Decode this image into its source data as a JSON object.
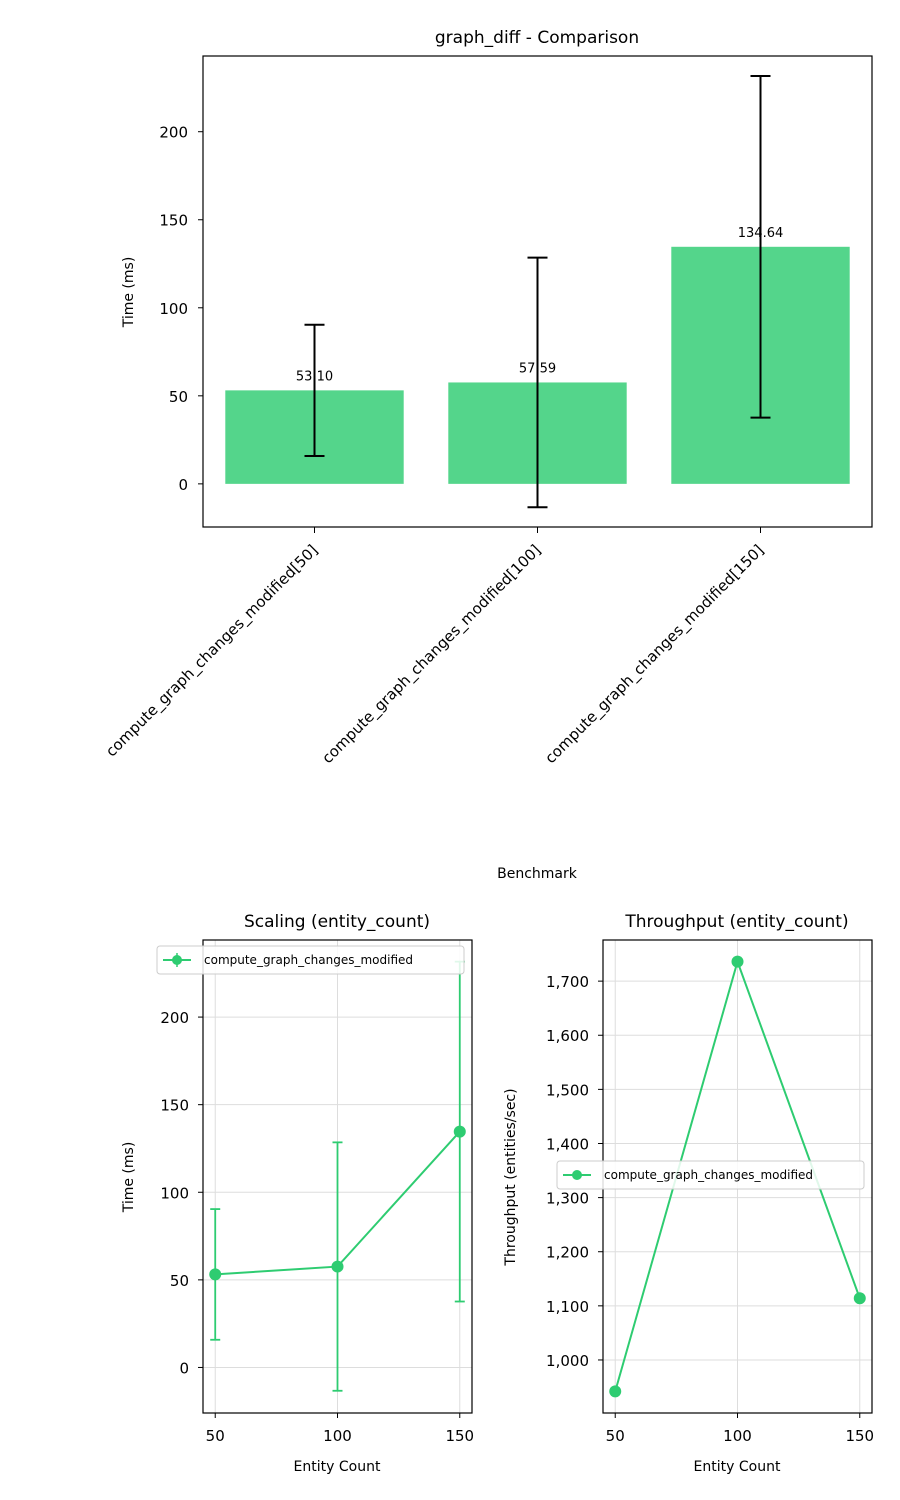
{
  "colors": {
    "bar": "#2ecc71",
    "line": "#2ecc71",
    "axis": "#000000",
    "grid": "#dddddd",
    "errorbar": "#000000"
  },
  "chart_data": [
    {
      "type": "bar",
      "title": "graph_diff - Comparison",
      "xlabel": "Benchmark",
      "ylabel": "Time (ms)",
      "categories": [
        "compute_graph_changes_modified[50]",
        "compute_graph_changes_modified[100]",
        "compute_graph_changes_modified[150]"
      ],
      "values": [
        53.1,
        57.59,
        134.64
      ],
      "errors": [
        37.3,
        70.9,
        97.0
      ],
      "value_labels": [
        "53.10",
        "57.59",
        "134.64"
      ],
      "ylim": [
        -24.5,
        243
      ],
      "yticks": [
        0,
        50,
        100,
        150,
        200
      ],
      "ytick_labels": [
        "0",
        "50",
        "100",
        "150",
        "200"
      ],
      "grid": false
    },
    {
      "type": "line",
      "title": "Scaling (entity_count)",
      "xlabel": "Entity Count",
      "ylabel": "Time (ms)",
      "x": [
        50,
        100,
        150
      ],
      "series": [
        {
          "name": "compute_graph_changes_modified",
          "values": [
            53.1,
            57.59,
            134.64
          ],
          "errors": [
            37.3,
            70.9,
            97.0
          ]
        }
      ],
      "xlim": [
        45,
        155
      ],
      "ylim": [
        -26,
        244
      ],
      "xticks": [
        50,
        100,
        150
      ],
      "xtick_labels": [
        "50",
        "100",
        "150"
      ],
      "yticks": [
        0,
        50,
        100,
        150,
        200
      ],
      "ytick_labels": [
        "0",
        "50",
        "100",
        "150",
        "200"
      ],
      "legend": "top-right",
      "grid": true
    },
    {
      "type": "line",
      "title": "Throughput (entity_count)",
      "xlabel": "Entity Count",
      "ylabel": "Throughput (entities/sec)",
      "x": [
        50,
        100,
        150
      ],
      "series": [
        {
          "name": "compute_graph_changes_modified",
          "values": [
            942,
            1736,
            1114
          ]
        }
      ],
      "xlim": [
        45,
        155
      ],
      "ylim": [
        902,
        1776
      ],
      "xticks": [
        50,
        100,
        150
      ],
      "xtick_labels": [
        "50",
        "100",
        "150"
      ],
      "yticks": [
        1000,
        1100,
        1200,
        1300,
        1400,
        1500,
        1600,
        1700
      ],
      "ytick_labels": [
        "1,000",
        "1,100",
        "1,200",
        "1,300",
        "1,400",
        "1,500",
        "1,600",
        "1,700"
      ],
      "legend": "center-right",
      "grid": true
    }
  ]
}
